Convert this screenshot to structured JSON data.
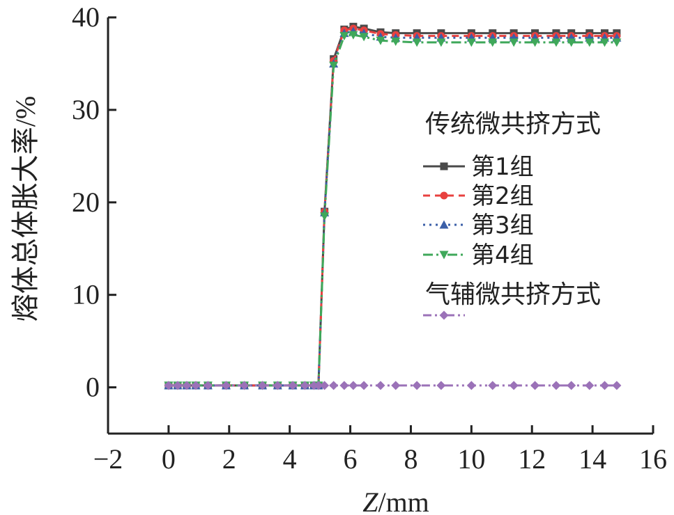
{
  "chart_data": {
    "type": "line",
    "xlabel_italic": "Z",
    "xlabel_unit": "/mm",
    "ylabel": "熔体总体胀大率/%",
    "xlim": [
      -2,
      16
    ],
    "ylim": [
      -5,
      40
    ],
    "xticks": [
      -2,
      0,
      2,
      4,
      6,
      8,
      10,
      12,
      14,
      16
    ],
    "yticks": [
      0,
      10,
      20,
      30,
      40
    ],
    "xtick_labels": [
      "−2",
      "0",
      "2",
      "4",
      "6",
      "8",
      "10",
      "12",
      "14",
      "16"
    ],
    "ytick_labels": [
      "0",
      "10",
      "20",
      "30",
      "40"
    ],
    "legend": {
      "placement": "center-right",
      "group_titles": [
        "传统微共挤方式",
        "气辅微共挤方式"
      ]
    },
    "series": [
      {
        "name": "第1组",
        "group": 0,
        "color": "#4a4a4a",
        "marker": "square",
        "dash": "",
        "x": [
          0,
          0.3,
          0.6,
          0.9,
          1.3,
          1.9,
          2.5,
          3.1,
          3.6,
          4.1,
          4.5,
          4.8,
          4.95,
          5.15,
          5.45,
          5.8,
          6.1,
          6.45,
          7.0,
          7.5,
          8.2,
          9.0,
          10.0,
          10.7,
          11.4,
          12.1,
          12.8,
          13.3,
          13.9,
          14.4,
          14.8
        ],
        "y": [
          0.2,
          0.2,
          0.2,
          0.2,
          0.2,
          0.2,
          0.2,
          0.2,
          0.2,
          0.2,
          0.2,
          0.2,
          0.2,
          19.0,
          35.5,
          38.7,
          39.0,
          38.8,
          38.4,
          38.3,
          38.3,
          38.3,
          38.3,
          38.3,
          38.3,
          38.3,
          38.3,
          38.3,
          38.3,
          38.3,
          38.3
        ]
      },
      {
        "name": "第2组",
        "group": 0,
        "color": "#e8413f",
        "marker": "circle",
        "dash": "10 7",
        "x": [
          0,
          0.3,
          0.6,
          0.9,
          1.3,
          1.9,
          2.5,
          3.1,
          3.6,
          4.1,
          4.5,
          4.8,
          4.95,
          5.15,
          5.45,
          5.8,
          6.1,
          6.45,
          7.0,
          7.5,
          8.2,
          9.0,
          10.0,
          10.7,
          11.4,
          12.1,
          12.8,
          13.3,
          13.9,
          14.4,
          14.8
        ],
        "y": [
          0.2,
          0.2,
          0.2,
          0.2,
          0.2,
          0.2,
          0.2,
          0.2,
          0.2,
          0.2,
          0.2,
          0.2,
          0.2,
          19.0,
          35.3,
          38.6,
          38.8,
          38.6,
          38.2,
          38.1,
          38.0,
          38.0,
          38.0,
          38.0,
          38.0,
          38.0,
          38.0,
          38.0,
          38.0,
          38.0,
          38.0
        ]
      },
      {
        "name": "第3组",
        "group": 0,
        "color": "#3b5fa8",
        "marker": "triangle-up",
        "dash": "3 6",
        "x": [
          0,
          0.3,
          0.6,
          0.9,
          1.3,
          1.9,
          2.5,
          3.1,
          3.6,
          4.1,
          4.5,
          4.8,
          4.95,
          5.15,
          5.45,
          5.8,
          6.1,
          6.45,
          7.0,
          7.5,
          8.2,
          9.0,
          10.0,
          10.7,
          11.4,
          12.1,
          12.8,
          13.3,
          13.9,
          14.4,
          14.8
        ],
        "y": [
          0.2,
          0.2,
          0.2,
          0.2,
          0.2,
          0.2,
          0.2,
          0.2,
          0.2,
          0.2,
          0.2,
          0.2,
          0.2,
          18.9,
          35.0,
          38.3,
          38.5,
          38.3,
          37.9,
          37.8,
          37.8,
          37.8,
          37.8,
          37.8,
          37.8,
          37.8,
          37.8,
          37.8,
          37.8,
          37.8,
          37.8
        ]
      },
      {
        "name": "第4组",
        "group": 0,
        "color": "#3fa85a",
        "marker": "triangle-down",
        "dash": "14 5 3 5 3 5",
        "x": [
          0,
          0.3,
          0.6,
          0.9,
          1.3,
          1.9,
          2.5,
          3.1,
          3.6,
          4.1,
          4.5,
          4.8,
          4.95,
          5.15,
          5.45,
          5.8,
          6.1,
          6.45,
          7.0,
          7.5,
          8.2,
          9.0,
          10.0,
          10.7,
          11.4,
          12.1,
          12.8,
          13.3,
          13.9,
          14.4,
          14.8
        ],
        "y": [
          0.2,
          0.2,
          0.2,
          0.2,
          0.2,
          0.2,
          0.2,
          0.2,
          0.2,
          0.2,
          0.2,
          0.2,
          0.2,
          18.5,
          34.8,
          38.0,
          38.1,
          37.9,
          37.5,
          37.4,
          37.3,
          37.3,
          37.3,
          37.3,
          37.3,
          37.3,
          37.3,
          37.3,
          37.3,
          37.3,
          37.3
        ]
      },
      {
        "name": "",
        "group": 1,
        "color": "#9b72b8",
        "marker": "diamond",
        "dash": "12 5 3 5 3 5",
        "x": [
          0,
          0.3,
          0.6,
          0.9,
          1.3,
          1.9,
          2.5,
          3.1,
          3.6,
          4.1,
          4.5,
          4.8,
          4.95,
          5.15,
          5.45,
          5.8,
          6.1,
          6.45,
          7.0,
          7.5,
          8.2,
          9.0,
          10.0,
          10.7,
          11.4,
          12.1,
          12.8,
          13.3,
          13.9,
          14.4,
          14.8
        ],
        "y": [
          0.2,
          0.2,
          0.2,
          0.2,
          0.2,
          0.2,
          0.2,
          0.2,
          0.2,
          0.2,
          0.2,
          0.2,
          0.2,
          0.2,
          0.2,
          0.2,
          0.2,
          0.2,
          0.2,
          0.2,
          0.2,
          0.2,
          0.2,
          0.2,
          0.2,
          0.2,
          0.2,
          0.2,
          0.2,
          0.2,
          0.2
        ]
      }
    ]
  }
}
